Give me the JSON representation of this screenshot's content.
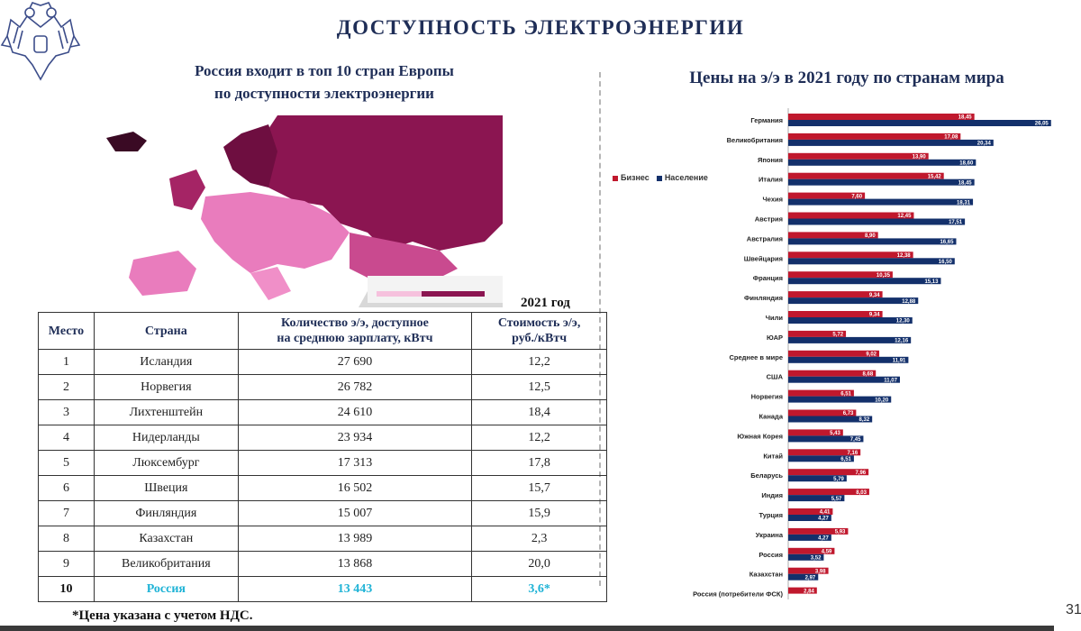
{
  "header": {
    "title": "ДОСТУПНОСТЬ ЭЛЕКТРОЭНЕРГИИ",
    "left_title_line1": "Россия входит в топ 10 стран Европы",
    "left_title_line2": "по доступности электроэнергии",
    "right_title": "Цены на э/э в 2021 году по странам мира"
  },
  "table": {
    "year_label": "2021 год",
    "headers": {
      "place": "Место",
      "country": "Страна",
      "kwh_line1": "Количество э/э, доступное",
      "kwh_line2": "на среднюю зарплату, кВтч",
      "price_line1": "Стоимость э/э,",
      "price_line2": "руб./кВтч"
    },
    "rows": [
      {
        "place": "1",
        "country": "Исландия",
        "kwh": "27 690",
        "price": "12,2"
      },
      {
        "place": "2",
        "country": "Норвегия",
        "kwh": "26 782",
        "price": "12,5"
      },
      {
        "place": "3",
        "country": "Лихтенштейн",
        "kwh": "24 610",
        "price": "18,4"
      },
      {
        "place": "4",
        "country": "Нидерланды",
        "kwh": "23 934",
        "price": "12,2"
      },
      {
        "place": "5",
        "country": "Люксембург",
        "kwh": "17 313",
        "price": "17,8"
      },
      {
        "place": "6",
        "country": "Швеция",
        "kwh": "16 502",
        "price": "15,7"
      },
      {
        "place": "7",
        "country": "Финляндия",
        "kwh": "15 007",
        "price": "15,9"
      },
      {
        "place": "8",
        "country": "Казахстан",
        "kwh": "13 989",
        "price": "2,3"
      },
      {
        "place": "9",
        "country": "Великобритания",
        "kwh": "13 868",
        "price": "20,0"
      },
      {
        "place": "10",
        "country": "Россия",
        "kwh": "13 443",
        "price": "3,6*"
      }
    ],
    "footnote": "*Цена указана с учетом НДС."
  },
  "page_number": "31",
  "colors": {
    "business": "#c0182d",
    "population": "#13306b",
    "highlight": "#1fb3d6",
    "map_dark": "#8b1551",
    "map_light": "#e97cbd"
  },
  "chart_data": {
    "type": "bar",
    "orientation": "horizontal",
    "categories": [
      "Германия",
      "Великобритания",
      "Япония",
      "Италия",
      "Чехия",
      "Австрия",
      "Австралия",
      "Швейцария",
      "Франция",
      "Финляндия",
      "Чили",
      "ЮАР",
      "Среднее в мире",
      "США",
      "Норвегия",
      "Канада",
      "Южная Корея",
      "Китай",
      "Беларусь",
      "Индия",
      "Турция",
      "Украина",
      "Россия",
      "Казахстан",
      "Россия (потребители ФСК)"
    ],
    "series": [
      {
        "name": "Бизнес",
        "values": [
          "18,45",
          "17,08",
          "13,90",
          "15,42",
          "7,60",
          "12,45",
          "8,90",
          "12,38",
          "10,35",
          "9,34",
          "9,34",
          "5,72",
          "9,02",
          "8,68",
          "6,51",
          "6,73",
          "5,43",
          "7,16",
          "7,96",
          "8,03",
          "4,41",
          "5,93",
          "4,59",
          "3,98",
          "2,84"
        ]
      },
      {
        "name": "Население",
        "values": [
          "26,05",
          "20,34",
          "18,60",
          "18,45",
          "18,31",
          "17,51",
          "16,65",
          "16,50",
          "15,13",
          "12,88",
          "12,30",
          "12,16",
          "11,91",
          "11,07",
          "10,20",
          "8,32",
          "7,45",
          "6,51",
          "5,79",
          "5,57",
          "4,27",
          "4,27",
          "3,52",
          "2,97",
          null
        ]
      }
    ],
    "legend": [
      "Бизнес",
      "Население"
    ],
    "legend_position": "left",
    "grid": false
  }
}
